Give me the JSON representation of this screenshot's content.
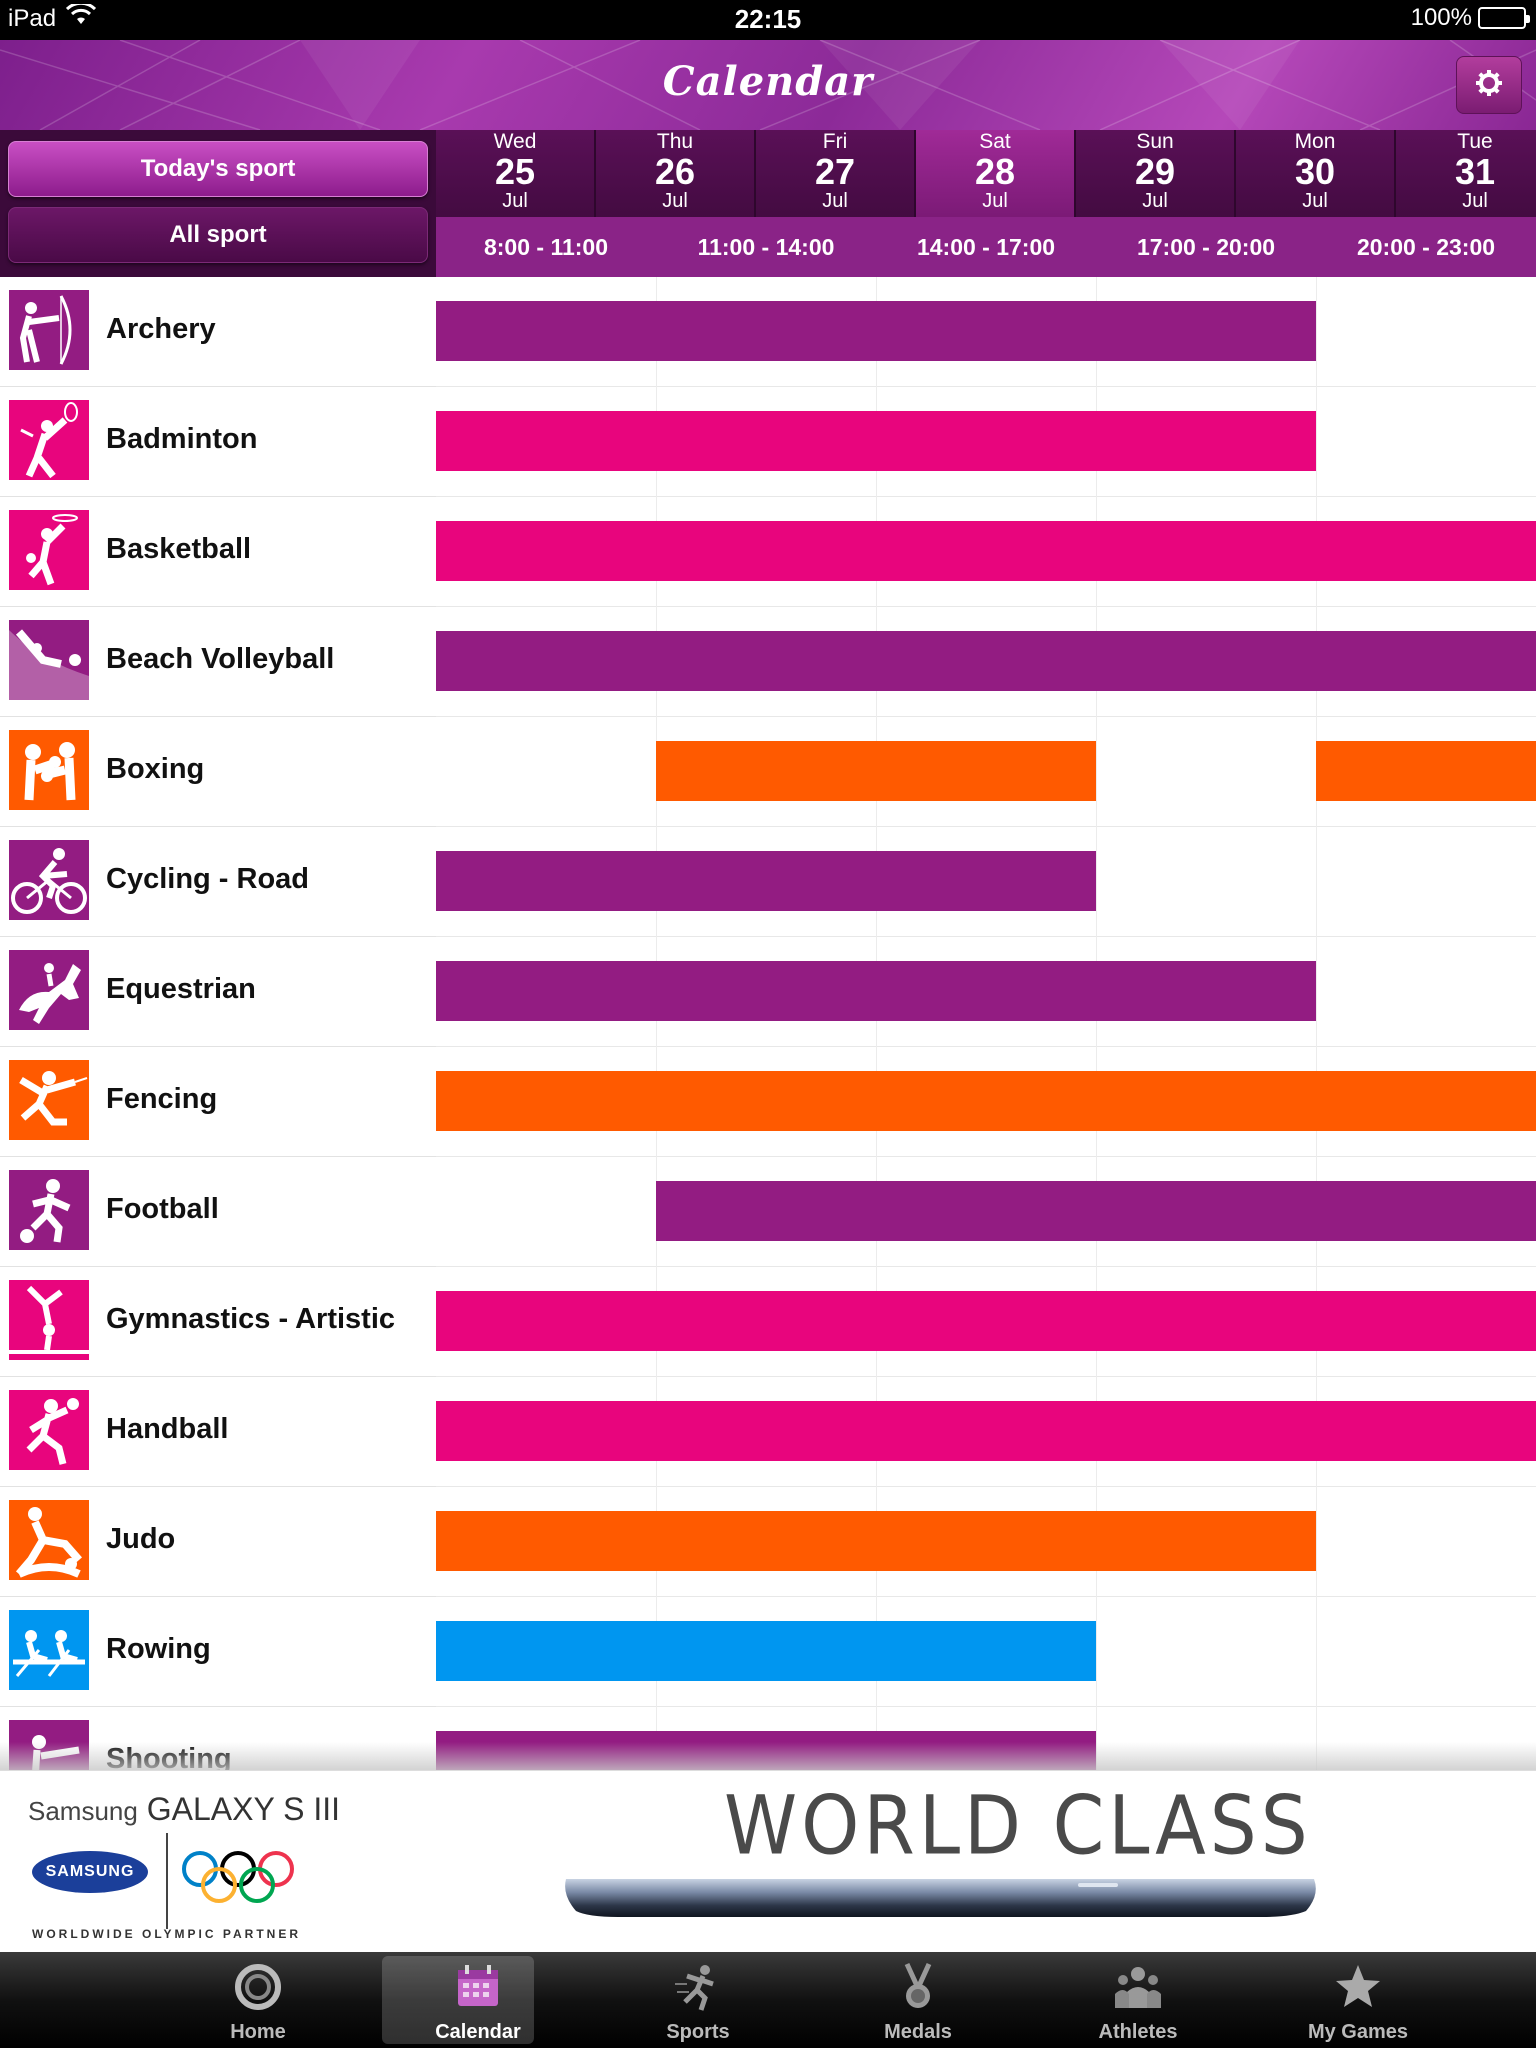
{
  "status_bar": {
    "device": "iPad",
    "time": "22:15",
    "battery": "100%",
    "battery_level": 1.0
  },
  "nav": {
    "title": "Calendar"
  },
  "filters": {
    "today": "Today's sport",
    "all": "All sport"
  },
  "dates": [
    {
      "dow": "Wed",
      "day": "25",
      "month": "Jul",
      "selected": false
    },
    {
      "dow": "Thu",
      "day": "26",
      "month": "Jul",
      "selected": false
    },
    {
      "dow": "Fri",
      "day": "27",
      "month": "Jul",
      "selected": false
    },
    {
      "dow": "Sat",
      "day": "28",
      "month": "Jul",
      "selected": true
    },
    {
      "dow": "Sun",
      "day": "29",
      "month": "Jul",
      "selected": false
    },
    {
      "dow": "Mon",
      "day": "30",
      "month": "Jul",
      "selected": false
    },
    {
      "dow": "Tue",
      "day": "31",
      "month": "Jul",
      "selected": false
    }
  ],
  "time_slots": [
    "8:00 - 11:00",
    "11:00 - 14:00",
    "14:00 - 17:00",
    "17:00 - 20:00",
    "20:00 - 23:00"
  ],
  "colors": {
    "purple": "#931c82",
    "pink": "#e8057d",
    "orange": "#ff5a00",
    "blue": "#0096f0"
  },
  "sports": [
    {
      "name": "Archery",
      "color": "purple",
      "icon": "archery-icon",
      "bars": [
        [
          0,
          4
        ]
      ]
    },
    {
      "name": "Badminton",
      "color": "pink",
      "icon": "badminton-icon",
      "bars": [
        [
          0,
          4
        ]
      ]
    },
    {
      "name": "Basketball",
      "color": "pink",
      "icon": "basketball-icon",
      "bars": [
        [
          0,
          5
        ]
      ]
    },
    {
      "name": "Beach Volleyball",
      "color": "purple",
      "icon": "beach-volleyball-icon",
      "bars": [
        [
          0,
          5
        ]
      ]
    },
    {
      "name": "Boxing",
      "color": "orange",
      "icon": "boxing-icon",
      "bars": [
        [
          1,
          3
        ],
        [
          4,
          5
        ]
      ]
    },
    {
      "name": "Cycling - Road",
      "color": "purple",
      "icon": "cycling-road-icon",
      "bars": [
        [
          0,
          3
        ]
      ]
    },
    {
      "name": "Equestrian",
      "color": "purple",
      "icon": "equestrian-icon",
      "bars": [
        [
          0,
          4
        ]
      ]
    },
    {
      "name": "Fencing",
      "color": "orange",
      "icon": "fencing-icon",
      "bars": [
        [
          0,
          5
        ]
      ]
    },
    {
      "name": "Football",
      "color": "purple",
      "icon": "football-icon",
      "bars": [
        [
          1,
          5
        ]
      ]
    },
    {
      "name": "Gymnastics - Artistic",
      "color": "pink",
      "icon": "gymnastics-artistic-icon",
      "bars": [
        [
          0,
          5
        ]
      ]
    },
    {
      "name": "Handball",
      "color": "pink",
      "icon": "handball-icon",
      "bars": [
        [
          0,
          5
        ]
      ]
    },
    {
      "name": "Judo",
      "color": "orange",
      "icon": "judo-icon",
      "bars": [
        [
          0,
          4
        ]
      ]
    },
    {
      "name": "Rowing",
      "color": "blue",
      "icon": "rowing-icon",
      "bars": [
        [
          0,
          3
        ]
      ]
    },
    {
      "name": "Shooting",
      "color": "purple",
      "icon": "shooting-icon",
      "bars": [
        [
          0,
          3
        ]
      ]
    }
  ],
  "banner": {
    "brand_line": "Samsung",
    "product": "GALAXY S III",
    "logo_text": "SAMSUNG",
    "partner": "WORLDWIDE OLYMPIC PARTNER",
    "headline": "WORLD CLASS"
  },
  "tabs": [
    {
      "label": "Home",
      "icon": "home-icon",
      "active": false
    },
    {
      "label": "Calendar",
      "icon": "calendar-icon",
      "active": true
    },
    {
      "label": "Sports",
      "icon": "sports-icon",
      "active": false
    },
    {
      "label": "Medals",
      "icon": "medals-icon",
      "active": false
    },
    {
      "label": "Athletes",
      "icon": "athletes-icon",
      "active": false
    },
    {
      "label": "My Games",
      "icon": "my-games-icon",
      "active": false
    }
  ]
}
